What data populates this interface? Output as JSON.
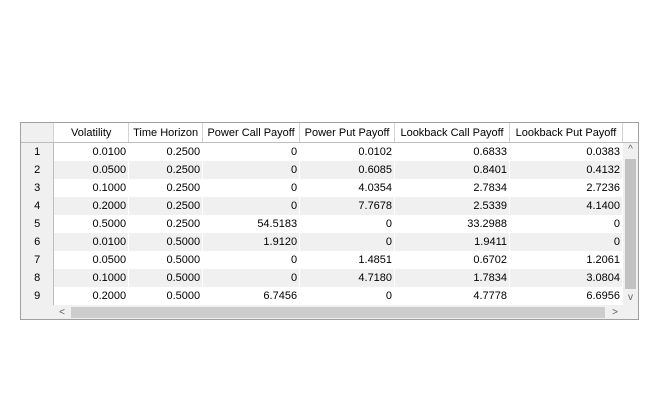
{
  "table": {
    "columns": [
      "Volatility",
      "Time Horizon",
      "Power Call Payoff",
      "Power Put Payoff",
      "Lookback Call Payoff",
      "Lookback Put Payoff"
    ],
    "rows": [
      {
        "index": "1",
        "cells": [
          "0.0100",
          "0.2500",
          "0",
          "0.0102",
          "0.6833",
          "0.0383"
        ]
      },
      {
        "index": "2",
        "cells": [
          "0.0500",
          "0.2500",
          "0",
          "0.6085",
          "0.8401",
          "0.4132"
        ]
      },
      {
        "index": "3",
        "cells": [
          "0.1000",
          "0.2500",
          "0",
          "4.0354",
          "2.7834",
          "2.7236"
        ]
      },
      {
        "index": "4",
        "cells": [
          "0.2000",
          "0.2500",
          "0",
          "7.7678",
          "2.5339",
          "4.1400"
        ]
      },
      {
        "index": "5",
        "cells": [
          "0.5000",
          "0.2500",
          "54.5183",
          "0",
          "33.2988",
          "0"
        ]
      },
      {
        "index": "6",
        "cells": [
          "0.0100",
          "0.5000",
          "1.9120",
          "0",
          "1.9411",
          "0"
        ]
      },
      {
        "index": "7",
        "cells": [
          "0.0500",
          "0.5000",
          "0",
          "1.4851",
          "0.6702",
          "1.2061"
        ]
      },
      {
        "index": "8",
        "cells": [
          "0.1000",
          "0.5000",
          "0",
          "4.7180",
          "1.7834",
          "3.0804"
        ]
      },
      {
        "index": "9",
        "cells": [
          "0.2000",
          "0.5000",
          "6.7456",
          "0",
          "4.7778",
          "6.6956"
        ]
      }
    ]
  },
  "scrollbars": {
    "up_icon": "chevron-up-icon",
    "down_icon": "chevron-down-icon",
    "left_icon": "chevron-left-icon",
    "right_icon": "chevron-right-icon",
    "vertical_position": 0.05,
    "horizontal_position": 0.0
  }
}
